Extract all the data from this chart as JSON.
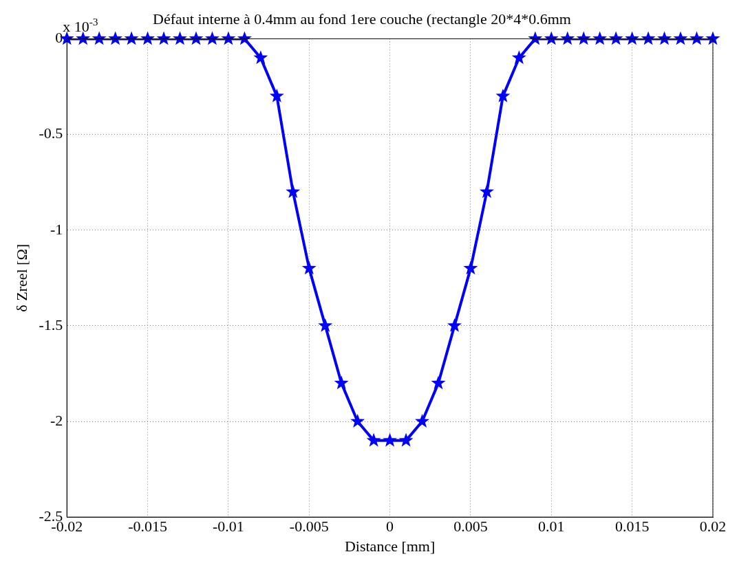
{
  "chart_data": {
    "type": "line",
    "title": "Défaut interne à 0.4mm au fond 1ere couche (rectangle 20*4*0.6mm",
    "xlabel": "Distance [mm]",
    "ylabel": "δ Zreel [Ω]",
    "annotations": [
      "x 10$^{-3}$"
    ],
    "x": [
      -0.02,
      -0.019,
      -0.018,
      -0.017,
      -0.016,
      -0.015,
      -0.014,
      -0.013,
      -0.012,
      -0.011,
      -0.01,
      -0.009,
      -0.008,
      -0.007,
      -0.006,
      -0.005,
      -0.004,
      -0.003,
      -0.002,
      -0.001,
      0,
      0.001,
      0.002,
      0.003,
      0.004,
      0.005,
      0.006,
      0.007,
      0.008,
      0.009,
      0.01,
      0.011,
      0.012,
      0.013,
      0.014,
      0.015,
      0.016,
      0.017,
      0.018,
      0.019,
      0.02
    ],
    "series": [
      {
        "color": "#0000ff",
        "values": [
          0,
          0,
          0,
          0,
          0,
          0,
          0,
          0,
          0,
          0,
          0,
          0,
          -0.1,
          -0.3,
          -0.8,
          -1.2,
          -1.5,
          -1.8,
          -2.0,
          -2.1,
          -2.1,
          -2.1,
          -2.0,
          -1.8,
          -1.5,
          -1.2,
          -0.8,
          -0.3,
          -0.1,
          0,
          0,
          0,
          0,
          0,
          0,
          0,
          0,
          0,
          0,
          0,
          0
        ]
      }
    ],
    "xlim": [
      -0.02,
      0.02
    ],
    "xticks": [
      -0.02,
      -0.015,
      -0.01,
      -0.005,
      0,
      0.005,
      0.01,
      0.015,
      0.02
    ],
    "ylim": [
      -2.5,
      0
    ],
    "yticks": [
      -2.5,
      -2,
      -1.5,
      -1,
      -0.5,
      0
    ],
    "grid": true,
    "legend": false,
    "marker": "star",
    "line_style": "solid"
  }
}
